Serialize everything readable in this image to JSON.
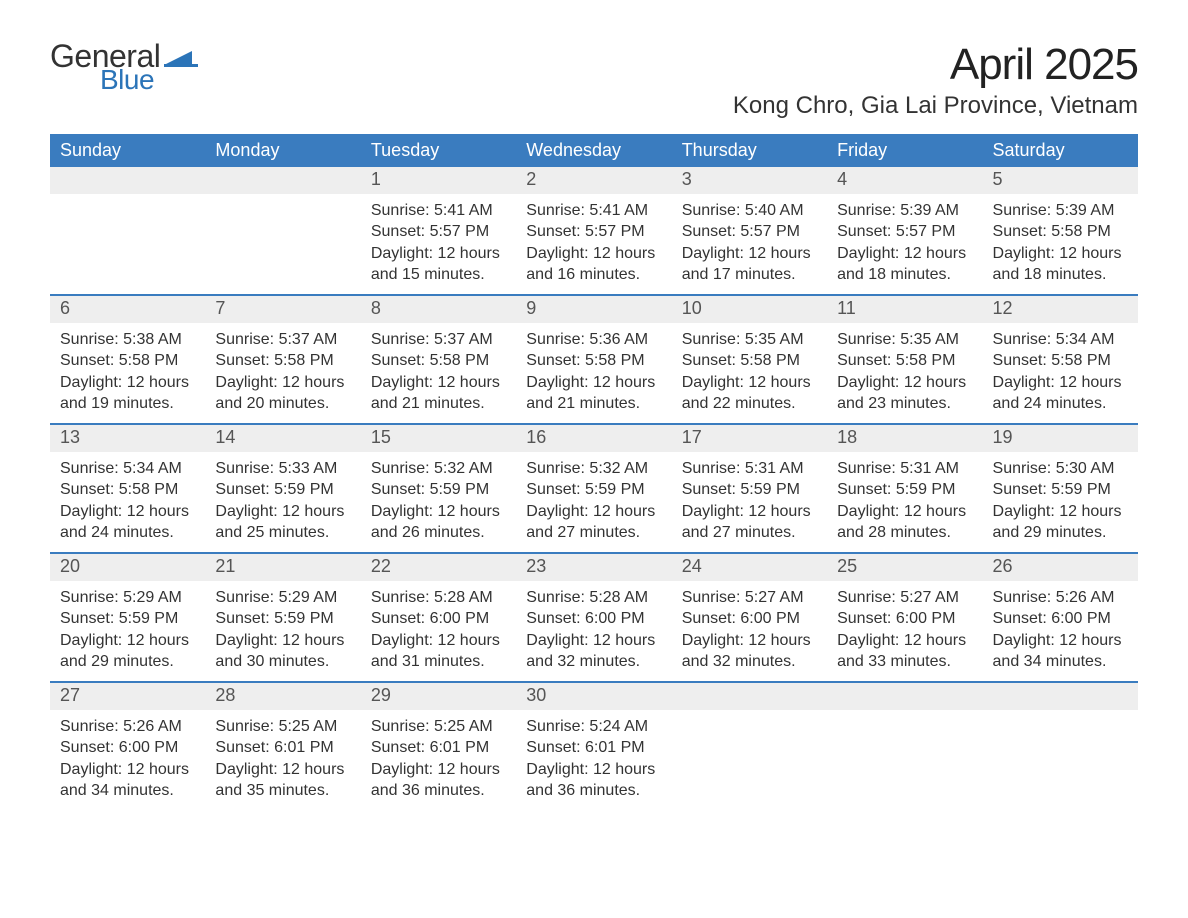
{
  "logo": {
    "word1": "General",
    "word2": "Blue",
    "flag_color": "#2b74b8"
  },
  "title": "April 2025",
  "location": "Kong Chro, Gia Lai Province, Vietnam",
  "colors": {
    "header_bg": "#3a7cbf",
    "header_text": "#ffffff",
    "daynum_bg": "#eeeeee",
    "daynum_text": "#555555",
    "body_text": "#333333",
    "page_bg": "#ffffff",
    "rule": "#3a7cbf"
  },
  "fonts": {
    "family": "Segoe UI",
    "title_size_pt": 33,
    "location_size_pt": 18,
    "header_size_pt": 14,
    "body_size_pt": 12
  },
  "day_labels": [
    "Sunday",
    "Monday",
    "Tuesday",
    "Wednesday",
    "Thursday",
    "Friday",
    "Saturday"
  ],
  "labels": {
    "sunrise": "Sunrise:",
    "sunset": "Sunset:",
    "daylight": "Daylight:"
  },
  "weeks": [
    [
      null,
      null,
      {
        "n": "1",
        "sunrise": "5:41 AM",
        "sunset": "5:57 PM",
        "daylight": "12 hours and 15 minutes."
      },
      {
        "n": "2",
        "sunrise": "5:41 AM",
        "sunset": "5:57 PM",
        "daylight": "12 hours and 16 minutes."
      },
      {
        "n": "3",
        "sunrise": "5:40 AM",
        "sunset": "5:57 PM",
        "daylight": "12 hours and 17 minutes."
      },
      {
        "n": "4",
        "sunrise": "5:39 AM",
        "sunset": "5:57 PM",
        "daylight": "12 hours and 18 minutes."
      },
      {
        "n": "5",
        "sunrise": "5:39 AM",
        "sunset": "5:58 PM",
        "daylight": "12 hours and 18 minutes."
      }
    ],
    [
      {
        "n": "6",
        "sunrise": "5:38 AM",
        "sunset": "5:58 PM",
        "daylight": "12 hours and 19 minutes."
      },
      {
        "n": "7",
        "sunrise": "5:37 AM",
        "sunset": "5:58 PM",
        "daylight": "12 hours and 20 minutes."
      },
      {
        "n": "8",
        "sunrise": "5:37 AM",
        "sunset": "5:58 PM",
        "daylight": "12 hours and 21 minutes."
      },
      {
        "n": "9",
        "sunrise": "5:36 AM",
        "sunset": "5:58 PM",
        "daylight": "12 hours and 21 minutes."
      },
      {
        "n": "10",
        "sunrise": "5:35 AM",
        "sunset": "5:58 PM",
        "daylight": "12 hours and 22 minutes."
      },
      {
        "n": "11",
        "sunrise": "5:35 AM",
        "sunset": "5:58 PM",
        "daylight": "12 hours and 23 minutes."
      },
      {
        "n": "12",
        "sunrise": "5:34 AM",
        "sunset": "5:58 PM",
        "daylight": "12 hours and 24 minutes."
      }
    ],
    [
      {
        "n": "13",
        "sunrise": "5:34 AM",
        "sunset": "5:58 PM",
        "daylight": "12 hours and 24 minutes."
      },
      {
        "n": "14",
        "sunrise": "5:33 AM",
        "sunset": "5:59 PM",
        "daylight": "12 hours and 25 minutes."
      },
      {
        "n": "15",
        "sunrise": "5:32 AM",
        "sunset": "5:59 PM",
        "daylight": "12 hours and 26 minutes."
      },
      {
        "n": "16",
        "sunrise": "5:32 AM",
        "sunset": "5:59 PM",
        "daylight": "12 hours and 27 minutes."
      },
      {
        "n": "17",
        "sunrise": "5:31 AM",
        "sunset": "5:59 PM",
        "daylight": "12 hours and 27 minutes."
      },
      {
        "n": "18",
        "sunrise": "5:31 AM",
        "sunset": "5:59 PM",
        "daylight": "12 hours and 28 minutes."
      },
      {
        "n": "19",
        "sunrise": "5:30 AM",
        "sunset": "5:59 PM",
        "daylight": "12 hours and 29 minutes."
      }
    ],
    [
      {
        "n": "20",
        "sunrise": "5:29 AM",
        "sunset": "5:59 PM",
        "daylight": "12 hours and 29 minutes."
      },
      {
        "n": "21",
        "sunrise": "5:29 AM",
        "sunset": "5:59 PM",
        "daylight": "12 hours and 30 minutes."
      },
      {
        "n": "22",
        "sunrise": "5:28 AM",
        "sunset": "6:00 PM",
        "daylight": "12 hours and 31 minutes."
      },
      {
        "n": "23",
        "sunrise": "5:28 AM",
        "sunset": "6:00 PM",
        "daylight": "12 hours and 32 minutes."
      },
      {
        "n": "24",
        "sunrise": "5:27 AM",
        "sunset": "6:00 PM",
        "daylight": "12 hours and 32 minutes."
      },
      {
        "n": "25",
        "sunrise": "5:27 AM",
        "sunset": "6:00 PM",
        "daylight": "12 hours and 33 minutes."
      },
      {
        "n": "26",
        "sunrise": "5:26 AM",
        "sunset": "6:00 PM",
        "daylight": "12 hours and 34 minutes."
      }
    ],
    [
      {
        "n": "27",
        "sunrise": "5:26 AM",
        "sunset": "6:00 PM",
        "daylight": "12 hours and 34 minutes."
      },
      {
        "n": "28",
        "sunrise": "5:25 AM",
        "sunset": "6:01 PM",
        "daylight": "12 hours and 35 minutes."
      },
      {
        "n": "29",
        "sunrise": "5:25 AM",
        "sunset": "6:01 PM",
        "daylight": "12 hours and 36 minutes."
      },
      {
        "n": "30",
        "sunrise": "5:24 AM",
        "sunset": "6:01 PM",
        "daylight": "12 hours and 36 minutes."
      },
      null,
      null,
      null
    ]
  ]
}
